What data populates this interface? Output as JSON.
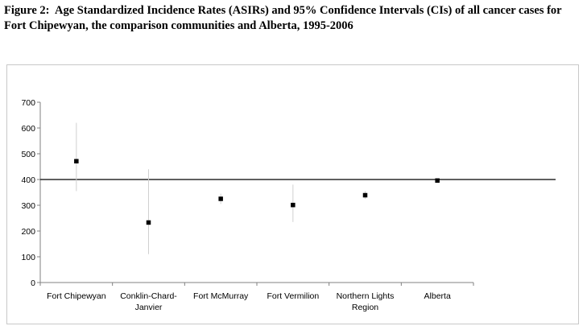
{
  "caption": {
    "label": "Figure 2:",
    "text": "Age Standardized Incidence Rates (ASIRs) and 95% Confidence Intervals (CIs) of all cancer cases for Fort Chipewyan, the comparison communities and Alberta, 1995-2006"
  },
  "chart_data": {
    "type": "scatter",
    "title": "",
    "xlabel": "",
    "ylabel": "",
    "categories": [
      [
        "Fort Chipewyan"
      ],
      [
        "Conklin-Chard-",
        "Janvier"
      ],
      [
        "Fort McMurray"
      ],
      [
        "Fort Vermilion"
      ],
      [
        "Northern Lights",
        "Region"
      ],
      [
        "Alberta"
      ]
    ],
    "values": [
      471,
      233,
      325,
      301,
      339,
      396
    ],
    "ci_lower": [
      355,
      110,
      305,
      235,
      325,
      392
    ],
    "ci_upper": [
      620,
      440,
      345,
      380,
      355,
      400
    ],
    "reference_line": 400,
    "ylim": [
      0,
      700
    ],
    "yticks": [
      0,
      100,
      200,
      300,
      400,
      500,
      600,
      700
    ],
    "grid": false,
    "legend": "none",
    "colors": {
      "marker": "#000000",
      "ci": "#d0d0d0",
      "reference": "#000000",
      "axis": "#808080"
    }
  }
}
